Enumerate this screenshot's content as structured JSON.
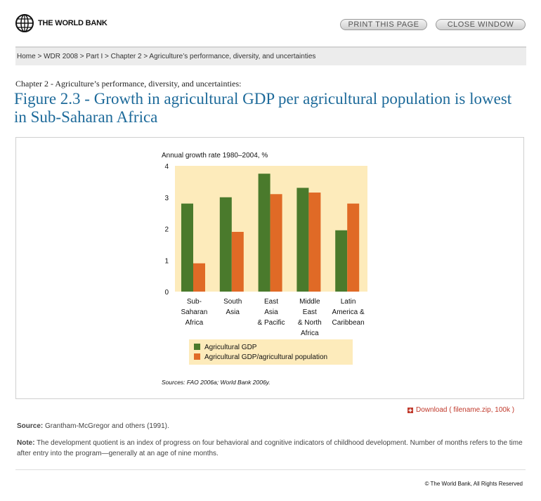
{
  "header": {
    "logo_text": "THE WORLD BANK",
    "print_label": "PRINT THIS PAGE",
    "close_label": "CLOSE WINDOW"
  },
  "breadcrumb": "Home > WDR 2008 > Part I > Chapter 2 > Agriculture’s performance, diversity, and uncertainties",
  "chapter_line": "Chapter 2 - Agriculture’s performance, diversity, and uncertainties:",
  "figure_title": "Figure 2.3 - Growth in agricultural GDP per agricultural population is lowest in Sub-Saharan Africa",
  "chart_data": {
    "type": "bar",
    "ylabel": "Annual growth rate 1980–2004, %",
    "ylim": [
      0,
      4
    ],
    "yticks": [
      "0",
      "1",
      "2",
      "3",
      "4"
    ],
    "categories": [
      [
        "Sub-",
        "Saharan",
        "Africa"
      ],
      [
        "South",
        "Asia"
      ],
      [
        "East",
        "Asia",
        "& Pacific"
      ],
      [
        "Middle",
        "East",
        "& North",
        "Africa"
      ],
      [
        "Latin",
        "America &",
        "Caribbean"
      ]
    ],
    "series": [
      {
        "name": "Agricultural GDP",
        "color": "#4a7a2c",
        "values": [
          2.8,
          3.0,
          3.75,
          3.3,
          1.95
        ]
      },
      {
        "name": "Agricultural GDP/agricultural population",
        "color": "#e06a26",
        "values": [
          0.9,
          1.9,
          3.1,
          3.15,
          2.8
        ]
      }
    ],
    "source": "Sources: FAO 2006a; World Bank 2006y."
  },
  "download_label": "Download ( filename.zip, 100k )",
  "source": {
    "label": "Source:",
    "text": " Grantham-McGregor and others (1991)."
  },
  "note": {
    "label": "Note:",
    "text": " The development quotient is an index of progress on four behavioral and cognitive indicators of childhood development. Number of months refers to the time after entry into the program—generally at an age of nine months."
  },
  "copyright": "© The World Bank, All Rights Reserved"
}
